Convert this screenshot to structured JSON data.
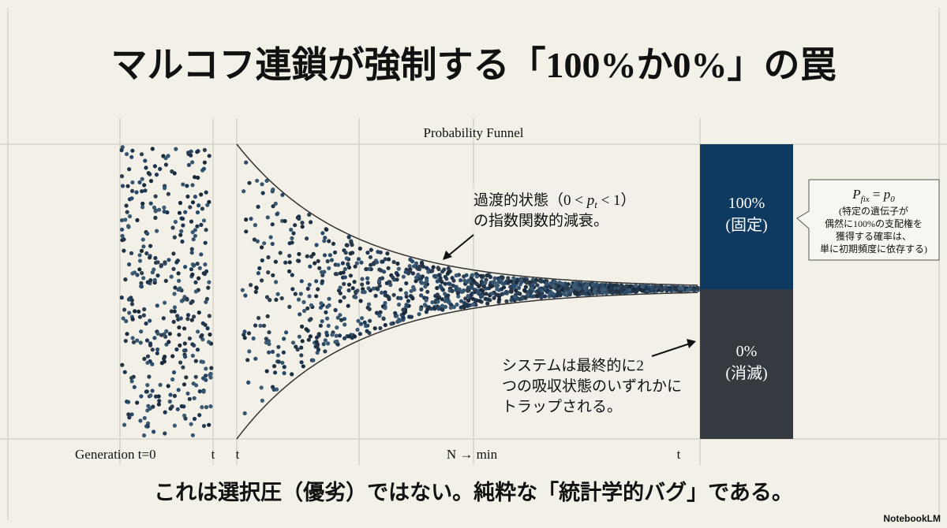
{
  "header": {
    "title": "マルコフ連鎖が強制する「100%か0%」の罠"
  },
  "funnel": {
    "label": "Probability Funnel"
  },
  "transient_note": {
    "prefix": "過渡的状態（0 < ",
    "var": "p",
    "sub": "t",
    "suffix": " < 1）",
    "line2": "の指数関数的減衰。"
  },
  "absorbing_top": {
    "value": "100%",
    "label": "(固定)"
  },
  "absorbing_bottom": {
    "value": "0%",
    "label": "(消滅)"
  },
  "callout": {
    "formula_left": "P",
    "formula_left_sub": "fix",
    "formula_eq": " = ",
    "formula_right": "p",
    "formula_right_sub": "0",
    "lines": [
      "(特定の遺伝子が",
      "偶然に100%の支配権を",
      "獲得する確率は、",
      "単に初期頻度に依存する)"
    ]
  },
  "trap_note": {
    "lines": [
      "システムは最終的に2",
      "つの吸収状態のいずれかに",
      "トラップされる。"
    ]
  },
  "axis_labels": {
    "generation": "Generation t=0",
    "t1": "t",
    "t2": "t",
    "middle": "N → min",
    "t3": "t"
  },
  "footer": {
    "text": "これは選択圧（優劣）ではない。純粋な「統計学的バグ」である。"
  },
  "logo": {
    "text": "NotebookLM"
  }
}
